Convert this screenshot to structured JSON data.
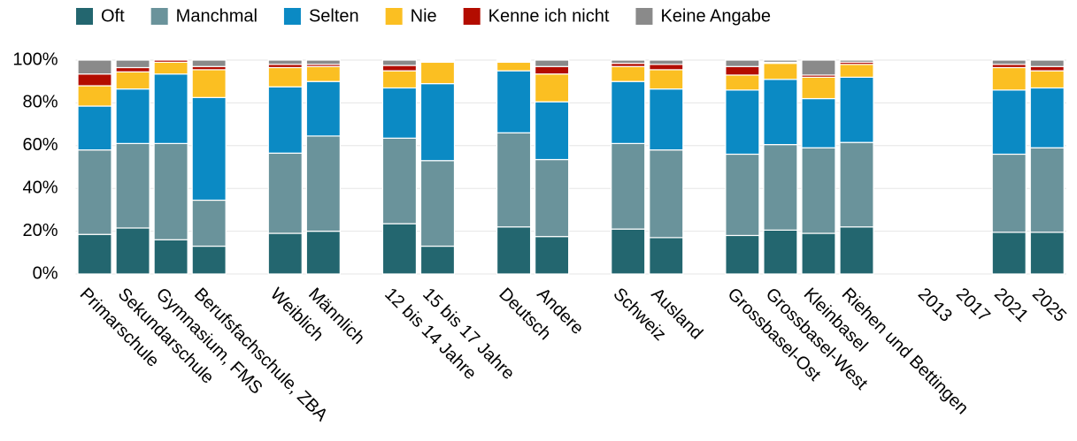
{
  "chart_data": {
    "type": "stacked_bar",
    "categories": [
      "Primarschule",
      "Sekundarschule",
      "Gymnasium, FMS",
      "Berufsfachschule, ZBA",
      null,
      "Weiblich",
      "Männlich",
      null,
      "12 bis 14 Jahre",
      "15 bis 17 Jahre",
      null,
      "Deutsch",
      "Andere",
      null,
      "Schweiz",
      "Ausland",
      null,
      "Grossbasel-Ost",
      "Grossbasel-West",
      "Kleinbasel",
      "Riehen und Bettingen",
      null,
      "2013",
      "2017",
      "2021",
      "2025"
    ],
    "series": [
      {
        "name": "Oft",
        "color": "#23666f",
        "values": [
          18.5,
          21.5,
          16,
          13,
          null,
          19,
          20,
          null,
          23.5,
          13,
          null,
          22,
          17.5,
          null,
          21,
          17,
          null,
          18,
          20.5,
          19,
          22,
          null,
          null,
          null,
          19.5,
          19.5
        ]
      },
      {
        "name": "Manchmal",
        "color": "#6a939b",
        "values": [
          39.5,
          39.5,
          45,
          21.5,
          null,
          37.5,
          44.5,
          null,
          40,
          40,
          null,
          44,
          36,
          null,
          40,
          41,
          null,
          38,
          40,
          40,
          39.5,
          null,
          null,
          null,
          36.5,
          39.5
        ]
      },
      {
        "name": "Selten",
        "color": "#0b8ac4",
        "values": [
          20.5,
          25.5,
          32.5,
          48,
          null,
          31,
          25.5,
          null,
          23.5,
          36,
          null,
          29,
          27,
          null,
          29,
          28.5,
          null,
          30,
          30.5,
          23,
          30.5,
          null,
          null,
          null,
          30,
          28
        ]
      },
      {
        "name": "Nie",
        "color": "#fbbf22",
        "values": [
          9.5,
          8,
          5.5,
          13,
          null,
          9,
          7,
          null,
          8,
          10,
          null,
          4,
          13,
          null,
          7,
          9,
          null,
          7,
          7.5,
          10,
          6,
          null,
          null,
          null,
          10.5,
          8
        ]
      },
      {
        "name": "Kenne ich nicht",
        "color": "#b30c00",
        "values": [
          5.5,
          2,
          1,
          1.5,
          null,
          1.5,
          1,
          null,
          2.5,
          0.5,
          null,
          0.5,
          3.5,
          null,
          1.5,
          2.5,
          null,
          4,
          0.5,
          1,
          1,
          null,
          null,
          null,
          1.5,
          2
        ]
      },
      {
        "name": "Keine Angabe",
        "color": "#8a8a8a",
        "values": [
          6.5,
          3.5,
          0,
          3,
          null,
          2,
          2,
          null,
          2.5,
          0.5,
          null,
          0.5,
          3,
          null,
          1.5,
          2,
          null,
          3,
          1,
          7,
          1,
          null,
          null,
          null,
          2,
          3
        ]
      }
    ],
    "ylim": [
      0,
      100
    ],
    "yticks": [
      {
        "value": 0,
        "label": "0%"
      },
      {
        "value": 20,
        "label": "20%"
      },
      {
        "value": 40,
        "label": "40%"
      },
      {
        "value": 60,
        "label": "60%"
      },
      {
        "value": 80,
        "label": "80%"
      },
      {
        "value": 100,
        "label": "100%"
      }
    ],
    "grid": true
  }
}
